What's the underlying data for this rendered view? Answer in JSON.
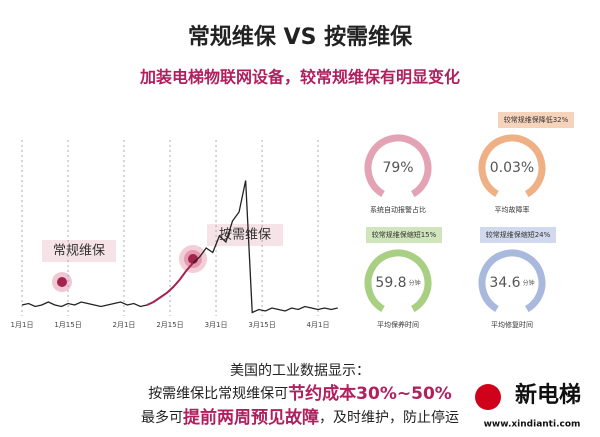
{
  "header": {
    "title": "常规维保  VS  按需维保",
    "subtitle": "加装电梯物联网设备，较常规维保有明显变化"
  },
  "chart_data": {
    "type": "line",
    "x": [
      0,
      2,
      4,
      6,
      8,
      10,
      12,
      14,
      16,
      18,
      20,
      22,
      24,
      26,
      28,
      30,
      32,
      34,
      36,
      38,
      40,
      42,
      44,
      46,
      48,
      50,
      52,
      54,
      56,
      58,
      60,
      62,
      64,
      66,
      68,
      70,
      72,
      74,
      76,
      78,
      80,
      82,
      84,
      86,
      88,
      90,
      92,
      94,
      96
    ],
    "xticks": [
      {
        "value": 0,
        "label": "1月1日"
      },
      {
        "value": 14,
        "label": "1月15日"
      },
      {
        "value": 31,
        "label": "2月1日"
      },
      {
        "value": 45,
        "label": "2月15日"
      },
      {
        "value": 59,
        "label": "3月1日"
      },
      {
        "value": 73,
        "label": "3月15日"
      },
      {
        "value": 90,
        "label": "4月1日"
      }
    ],
    "ylim": [
      0,
      100
    ],
    "series": [
      {
        "color": "#222222",
        "values": [
          10,
          11,
          9,
          10,
          12,
          10,
          9,
          11,
          10,
          12,
          11,
          10,
          9,
          10,
          11,
          12,
          10,
          11,
          9,
          10,
          null,
          null,
          null,
          null,
          null,
          null,
          38,
          42,
          48,
          45,
          56,
          52,
          66,
          72,
          93,
          5,
          7,
          6,
          8,
          7,
          6,
          8,
          7,
          9,
          8,
          7,
          8,
          7,
          8
        ]
      },
      {
        "color": "#a3234f",
        "values": [
          null,
          null,
          null,
          null,
          null,
          null,
          null,
          null,
          null,
          null,
          null,
          null,
          null,
          null,
          null,
          null,
          null,
          null,
          null,
          10,
          12,
          15,
          18,
          22,
          27,
          33,
          38,
          null,
          null,
          null,
          null,
          null,
          null,
          null,
          null,
          null,
          null,
          null,
          null,
          null,
          null,
          null,
          null,
          null,
          null,
          null,
          null,
          null,
          null
        ]
      }
    ],
    "annotations": [
      "常规维保",
      "按需维保"
    ]
  },
  "gauges": [
    {
      "value": "79%",
      "label": "系统自动报警占比",
      "color": "#e3a3b4"
    },
    {
      "value": "0.03%",
      "label": "平均故障率",
      "color": "#eeb084",
      "tag": "较常规维保降低32%"
    },
    {
      "value": "59.8",
      "unit": "分钟",
      "label": "平均保养时间",
      "color": "#a9cf83",
      "tag": "较常规维保缩短15%"
    },
    {
      "value": "34.6",
      "unit": "分钟",
      "label": "平均修复时间",
      "color": "#a9b9de",
      "tag": "较常规维保缩短24%"
    }
  ],
  "footer": {
    "line1": "美国的工业数据显示：",
    "line2": [
      "按需维保比常规维保可",
      "节约成本30%~50%"
    ],
    "line3": [
      "最多可",
      "提前两周预见故障",
      "，及时维护，防止停运"
    ]
  },
  "logo": {
    "name": "新电梯",
    "url": "www.xindianti.com"
  }
}
